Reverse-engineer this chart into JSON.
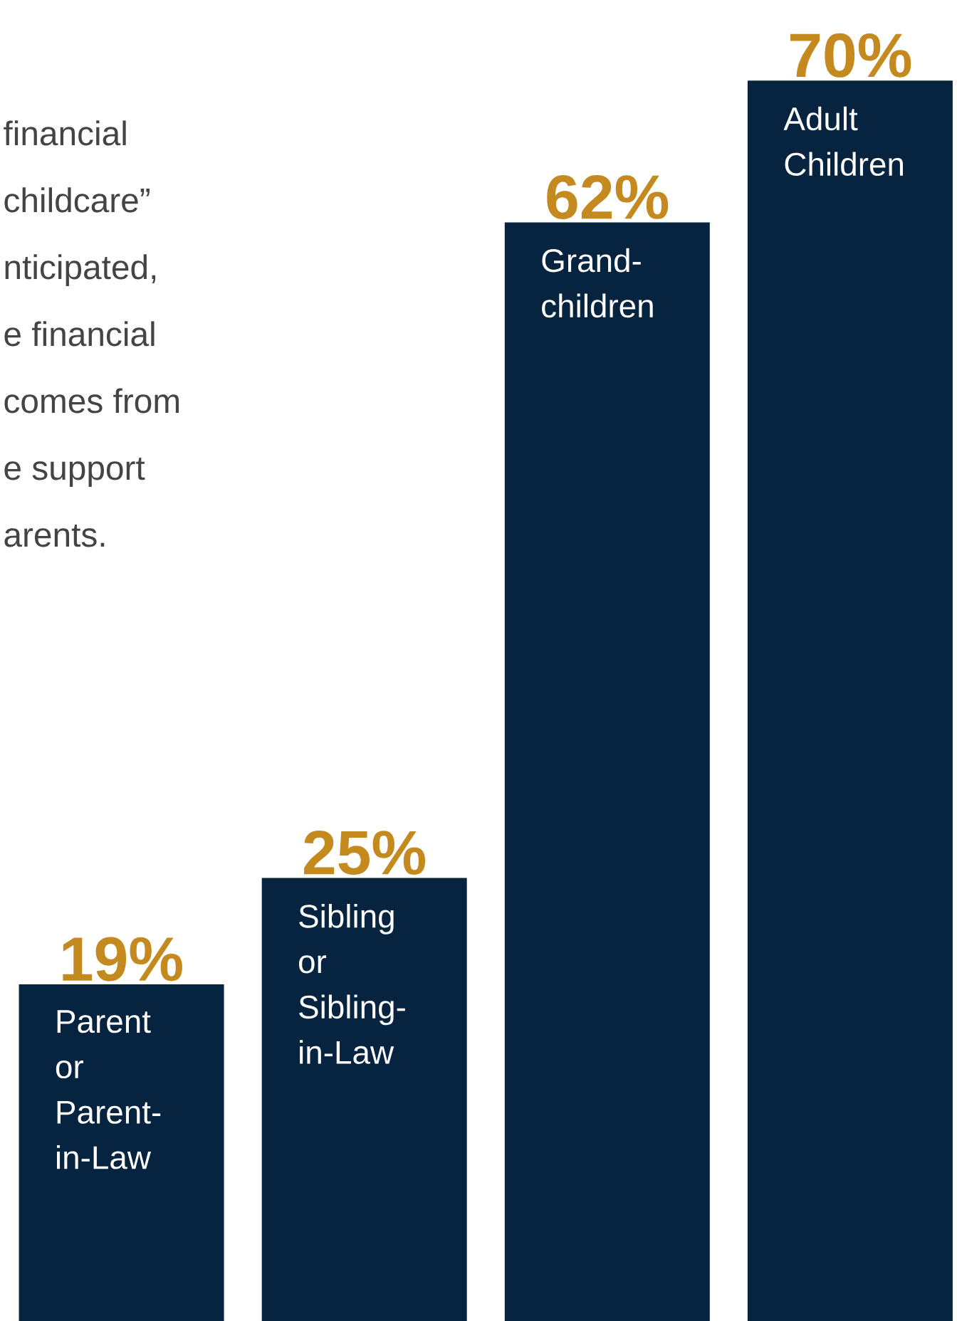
{
  "chart_data": {
    "type": "bar",
    "categories": [
      "Parent or Parent-in-Law",
      "Sibling or Sibling-in-Law",
      "Grand-children",
      "Adult Children"
    ],
    "values": [
      19,
      25,
      62,
      70
    ],
    "value_labels": [
      "19%",
      "25%",
      "62%",
      "70%"
    ],
    "color": "#06233f",
    "annotations": [
      "financial",
      "childcare”",
      "nticipated,",
      "e financial",
      "comes from",
      "e support",
      "arents."
    ]
  }
}
